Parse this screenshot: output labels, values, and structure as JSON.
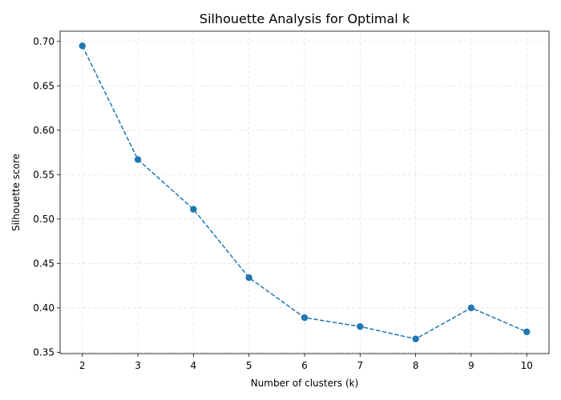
{
  "chart_data": {
    "type": "line",
    "title": "Silhouette Analysis for Optimal k",
    "xlabel": "Number of clusters (k)",
    "ylabel": "Silhouette score",
    "x": [
      2,
      3,
      4,
      5,
      6,
      7,
      8,
      9,
      10
    ],
    "series": [
      {
        "values": [
          0.695,
          0.567,
          0.511,
          0.434,
          0.389,
          0.379,
          0.365,
          0.4,
          0.373
        ],
        "color": "#1f77b4",
        "line_style": "dashed",
        "marker": "circle"
      }
    ],
    "xlim": [
      1.6,
      10.4
    ],
    "ylim": [
      0.3485,
      0.7115
    ],
    "xticks": [
      "2",
      "3",
      "4",
      "5",
      "6",
      "7",
      "8",
      "9",
      "10"
    ],
    "yticks": [
      "0.35",
      "0.40",
      "0.45",
      "0.50",
      "0.55",
      "0.60",
      "0.65",
      "0.70"
    ],
    "grid": true,
    "legend": "none"
  }
}
